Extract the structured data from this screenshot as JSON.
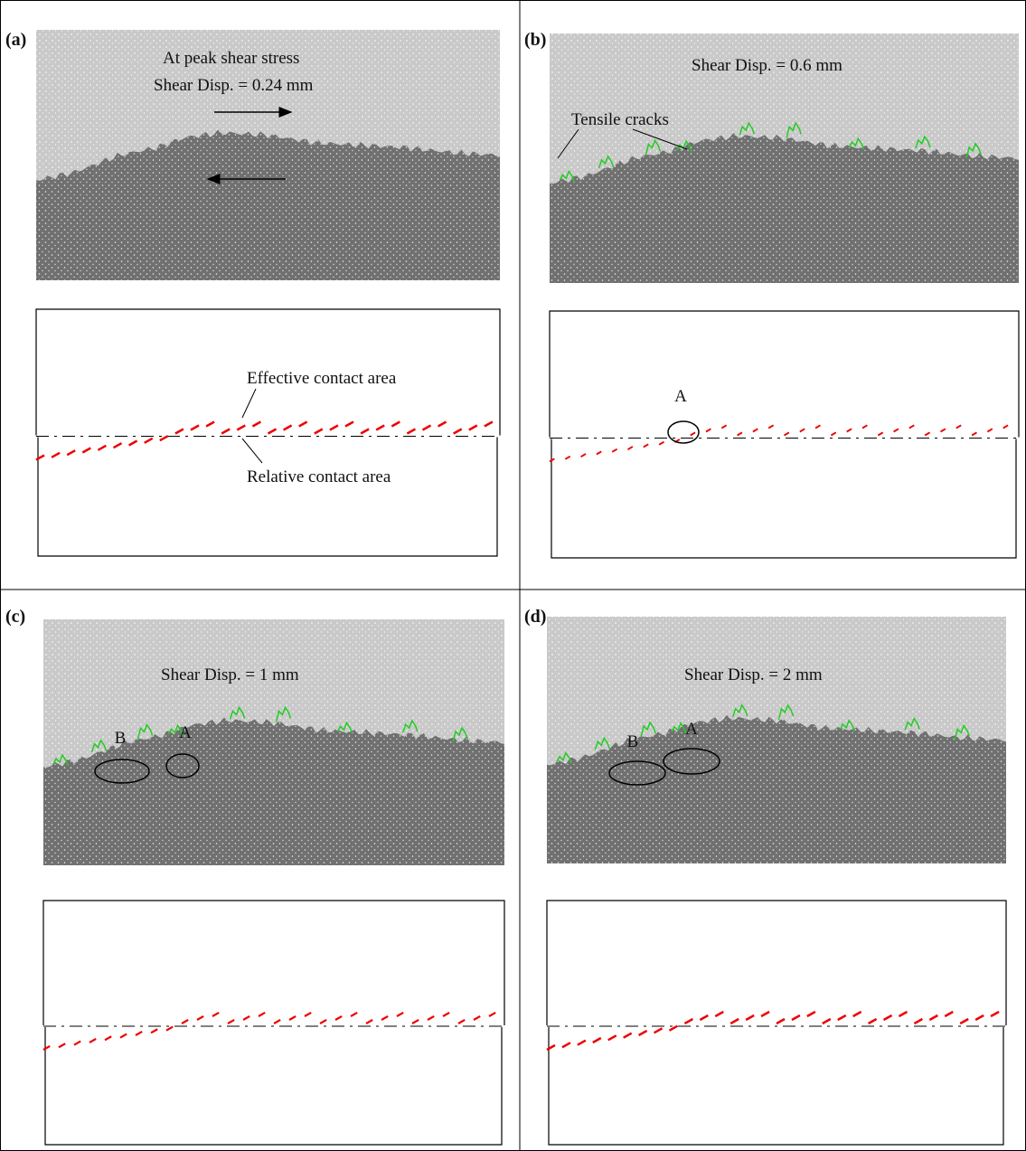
{
  "panels": [
    {
      "label": "(a)",
      "text": [
        "At peak shear stress",
        "Shear Disp. =  0.24 mm"
      ],
      "contact_labels": [
        "Effective contact area",
        "Relative contact area"
      ],
      "markers": []
    },
    {
      "label": "(b)",
      "text": [
        "Shear Disp. =  0.6 mm"
      ],
      "crack_label": "Tensile cracks",
      "markers": [
        "A"
      ]
    },
    {
      "label": "(c)",
      "text": [
        "Shear Disp. =  1 mm"
      ],
      "markers": [
        "B",
        "A"
      ]
    },
    {
      "label": "(d)",
      "text": [
        "Shear Disp. =  2 mm"
      ],
      "markers": [
        "B",
        "A"
      ]
    }
  ]
}
